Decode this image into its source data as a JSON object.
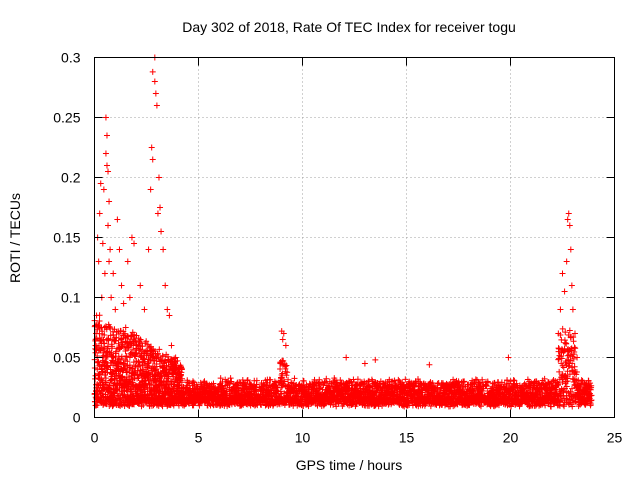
{
  "chart_data": {
    "type": "scatter",
    "title": "Day 302 of 2018, Rate Of TEC Index for receiver togu",
    "xlabel": "GPS time / hours",
    "ylabel": "ROTI / TECUs",
    "xlim": [
      0,
      25
    ],
    "ylim": [
      0,
      0.3
    ],
    "x_ticks": [
      0,
      5,
      10,
      15,
      20,
      25
    ],
    "y_ticks": [
      0,
      0.05,
      0.1,
      0.15,
      0.2,
      0.25,
      0.3
    ],
    "x_tick_labels": [
      "0",
      "5",
      "10",
      "15",
      "20",
      "25"
    ],
    "y_tick_labels": [
      "0",
      "0.05",
      "0.1",
      "0.15",
      "0.2",
      "0.25",
      "0.3"
    ],
    "grid": true,
    "marker": "+",
    "color": "#ff0000",
    "data_span_hours": [
      0,
      23.9
    ],
    "series": [
      {
        "name": "ROTI",
        "points": [
          [
            0.05,
            0.06
          ],
          [
            0.1,
            0.085
          ],
          [
            0.15,
            0.15
          ],
          [
            0.2,
            0.13
          ],
          [
            0.25,
            0.17
          ],
          [
            0.3,
            0.195
          ],
          [
            0.35,
            0.1
          ],
          [
            0.4,
            0.145
          ],
          [
            0.45,
            0.19
          ],
          [
            0.5,
            0.12
          ],
          [
            0.55,
            0.22
          ],
          [
            0.55,
            0.25
          ],
          [
            0.6,
            0.235
          ],
          [
            0.6,
            0.21
          ],
          [
            0.65,
            0.205
          ],
          [
            0.65,
            0.16
          ],
          [
            0.7,
            0.18
          ],
          [
            0.7,
            0.13
          ],
          [
            0.75,
            0.14
          ],
          [
            0.8,
            0.1
          ],
          [
            0.9,
            0.12
          ],
          [
            1.0,
            0.09
          ],
          [
            1.1,
            0.165
          ],
          [
            1.2,
            0.14
          ],
          [
            1.3,
            0.11
          ],
          [
            1.4,
            0.095
          ],
          [
            1.5,
            0.075
          ],
          [
            1.6,
            0.13
          ],
          [
            1.7,
            0.1
          ],
          [
            1.8,
            0.15
          ],
          [
            1.9,
            0.145
          ],
          [
            2.0,
            0.06
          ],
          [
            2.2,
            0.11
          ],
          [
            2.4,
            0.09
          ],
          [
            2.6,
            0.14
          ],
          [
            2.7,
            0.19
          ],
          [
            2.75,
            0.225
          ],
          [
            2.8,
            0.288
          ],
          [
            2.8,
            0.215
          ],
          [
            2.9,
            0.3
          ],
          [
            2.9,
            0.28
          ],
          [
            2.95,
            0.27
          ],
          [
            3.0,
            0.26
          ],
          [
            3.05,
            0.17
          ],
          [
            3.1,
            0.2
          ],
          [
            3.15,
            0.175
          ],
          [
            3.2,
            0.155
          ],
          [
            3.3,
            0.14
          ],
          [
            3.4,
            0.11
          ],
          [
            3.5,
            0.09
          ],
          [
            3.6,
            0.085
          ],
          [
            3.7,
            0.06
          ],
          [
            3.9,
            0.05
          ],
          [
            4.2,
            0.04
          ],
          [
            9.0,
            0.072
          ],
          [
            9.05,
            0.065
          ],
          [
            9.1,
            0.07
          ],
          [
            9.2,
            0.06
          ],
          [
            12.1,
            0.05
          ],
          [
            13.0,
            0.045
          ],
          [
            13.5,
            0.048
          ],
          [
            16.1,
            0.044
          ],
          [
            19.9,
            0.05
          ],
          [
            22.3,
            0.07
          ],
          [
            22.4,
            0.09
          ],
          [
            22.5,
            0.12
          ],
          [
            22.6,
            0.105
          ],
          [
            22.7,
            0.13
          ],
          [
            22.75,
            0.165
          ],
          [
            22.8,
            0.17
          ],
          [
            22.85,
            0.16
          ],
          [
            22.9,
            0.14
          ],
          [
            22.95,
            0.11
          ],
          [
            23.0,
            0.09
          ],
          [
            23.1,
            0.07
          ],
          [
            23.2,
            0.05
          ]
        ]
      }
    ]
  }
}
